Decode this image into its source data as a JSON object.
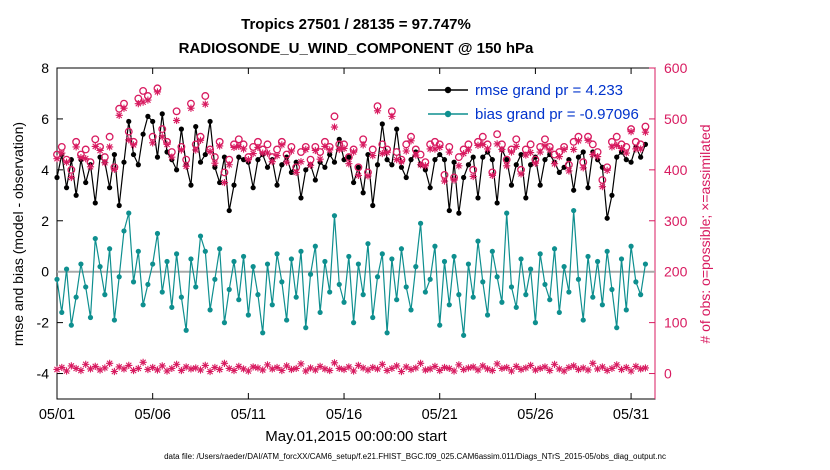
{
  "figure": {
    "title_line1": "Tropics 27501 / 28135 = 97.747%",
    "title_line2": "RADIOSONDE_U_WIND_COMPONENT @ 150 hPa",
    "xlabel": "May.01,2015 00:00:00 start",
    "ylabel_left": "rmse and bias (model - observation)",
    "ylabel_right": "# of obs: o=possible; ×=assimilated",
    "caption": "data file: /Users/raeder/DAI/ATM_forcXX/CAM6_setup/f.e21.FHIST_BGC.f09_025.CAM6assim.011/Diags_NTrS_2015-05/obs_diag_output.nc"
  },
  "legend": {
    "rmse_label": "rmse grand pr = 4.233",
    "bias_label": "bias grand pr = -0.97096",
    "text_color": "#0033CC"
  },
  "colors": {
    "rmse": "#000000",
    "bias": "#0E8F8F",
    "obs_count": "#D81B60",
    "zero_line": "#A9A9A9",
    "axis": "#000000"
  },
  "chart_data": {
    "type": "line",
    "title": "Tropics 27501 / 28135 = 97.747% — RADIOSONDE_U_WIND_COMPONENT @ 150 hPa",
    "xlabel": "May.01,2015 00:00:00 start",
    "ylabel_left": "rmse and bias (model - observation)",
    "ylabel_right": "# of obs: o=possible; ×=assimilated",
    "x_tick_labels": [
      "05/01",
      "05/06",
      "05/11",
      "05/16",
      "05/21",
      "05/26",
      "05/31"
    ],
    "x_tick_days": [
      0,
      5,
      10,
      15,
      20,
      25,
      30
    ],
    "x_max_days": 31.25,
    "points_per_day": 4,
    "left_ylim": [
      -5,
      8
    ],
    "left_yticks": [
      -4,
      -2,
      0,
      2,
      4,
      6,
      8
    ],
    "right_ylim": [
      -50,
      600
    ],
    "right_yticks": [
      0,
      100,
      200,
      300,
      400,
      500,
      600
    ],
    "grid": false,
    "legend_position": "top-right-inside",
    "series": [
      {
        "name": "rmse",
        "axis": "left",
        "color": "#000000",
        "marker": "filled-circle",
        "grand_value": 4.233,
        "values": [
          3.7,
          4.6,
          3.3,
          4.4,
          3.0,
          4.4,
          3.5,
          4.2,
          2.7,
          4.5,
          4.3,
          3.3,
          4.6,
          2.6,
          4.3,
          5.9,
          4.6,
          4.2,
          5.4,
          6.1,
          5.9,
          4.5,
          6.2,
          4.7,
          4.4,
          4.0,
          5.6,
          4.2,
          3.4,
          5.7,
          4.3,
          4.6,
          5.9,
          4.1,
          3.5,
          4.5,
          2.4,
          3.4,
          4.5,
          4.4,
          4.3,
          3.3,
          4.4,
          4.6,
          4.1,
          4.4,
          3.4,
          4.2,
          4.5,
          3.9,
          4.3,
          2.9,
          4.0,
          4.2,
          3.6,
          4.3,
          4.1,
          4.6,
          4.3,
          5.2,
          4.4,
          4.5,
          3.5,
          4.1,
          3.1,
          4.6,
          2.6,
          4.2,
          5.8,
          4.4,
          4.2,
          5.6,
          4.1,
          3.7,
          4.4,
          4.7,
          4.2,
          4.0,
          3.3,
          4.4,
          4.6,
          4.4,
          2.4,
          4.3,
          2.3,
          3.7,
          4.2,
          4.5,
          2.9,
          4.5,
          4.7,
          4.4,
          2.7,
          4.8,
          4.4,
          3.4,
          4.2,
          4.6,
          2.9,
          4.2,
          4.5,
          3.4,
          4.4,
          4.6,
          4.3,
          3.9,
          4.1,
          4.4,
          3.2,
          4.5,
          4.7,
          3.3,
          4.7,
          4.4,
          4.1,
          2.1,
          3.0,
          4.5,
          4.7,
          4.4,
          4.3,
          4.9,
          4.5,
          5.0
        ]
      },
      {
        "name": "bias",
        "axis": "left",
        "color": "#0E8F8F",
        "marker": "filled-circle",
        "grand_value": -0.97096,
        "values": [
          -0.3,
          -1.6,
          0.1,
          -2.1,
          -1.0,
          0.3,
          -0.6,
          -1.8,
          1.3,
          0.2,
          -0.9,
          0.9,
          -1.9,
          -0.2,
          1.6,
          2.3,
          -0.4,
          0.8,
          -1.3,
          -0.5,
          0.3,
          1.5,
          -0.8,
          0.4,
          -1.4,
          0.7,
          -1.0,
          -2.3,
          0.5,
          -0.6,
          1.4,
          0.8,
          -1.5,
          -0.3,
          0.9,
          -2.0,
          -0.7,
          0.4,
          -1.1,
          0.6,
          -1.7,
          0.2,
          -0.9,
          -2.4,
          0.3,
          -1.3,
          0.7,
          -0.4,
          -1.9,
          0.5,
          -1.0,
          0.8,
          -2.2,
          -0.1,
          1.0,
          -1.6,
          0.4,
          -0.8,
          2.2,
          -0.5,
          -1.2,
          0.6,
          -2.0,
          0.3,
          -0.9,
          1.1,
          -1.8,
          -0.2,
          0.7,
          -2.4,
          0.5,
          -1.1,
          0.9,
          -0.6,
          -1.5,
          0.2,
          1.9,
          -0.8,
          -0.3,
          1.0,
          -2.1,
          0.4,
          -1.3,
          0.6,
          -0.9,
          -2.5,
          0.3,
          -1.0,
          1.2,
          -0.4,
          -1.7,
          0.8,
          -0.2,
          -1.2,
          2.3,
          -0.6,
          -1.4,
          0.5,
          -0.9,
          0.1,
          -2.0,
          0.7,
          -0.5,
          -1.1,
          0.9,
          -1.6,
          0.2,
          -0.8,
          2.4,
          -0.3,
          -1.9,
          0.6,
          -1.0,
          0.4,
          -1.3,
          0.8,
          -0.7,
          -2.2,
          0.5,
          -1.5,
          1.0,
          -0.4,
          -0.9,
          0.3
        ]
      },
      {
        "name": "obs_possible",
        "axis": "right",
        "color": "#D81B60",
        "marker": "open-circle",
        "total": 28135,
        "values": [
          430,
          445,
          420,
          400,
          455,
          430,
          440,
          415,
          460,
          445,
          425,
          465,
          405,
          520,
          530,
          475,
          455,
          540,
          555,
          545,
          465,
          560,
          480,
          455,
          435,
          515,
          445,
          420,
          530,
          450,
          465,
          545,
          440,
          425,
          455,
          395,
          420,
          450,
          460,
          450,
          425,
          445,
          455,
          440,
          450,
          425,
          440,
          455,
          430,
          445,
          405,
          435,
          445,
          420,
          445,
          435,
          455,
          445,
          505,
          450,
          450,
          425,
          440,
          405,
          460,
          395,
          440,
          525,
          450,
          440,
          515,
          435,
          420,
          450,
          465,
          440,
          430,
          415,
          450,
          455,
          450,
          390,
          445,
          385,
          425,
          440,
          450,
          400,
          455,
          465,
          450,
          395,
          470,
          450,
          420,
          440,
          460,
          400,
          440,
          450,
          420,
          445,
          460,
          445,
          430,
          435,
          445,
          410,
          455,
          465,
          415,
          465,
          450,
          435,
          380,
          405,
          455,
          465,
          450,
          445,
          480,
          455,
          450,
          485
        ]
      },
      {
        "name": "obs_not_assimilated",
        "axis": "right",
        "color": "#D81B60",
        "marker": "asterisk",
        "note_assimilated_total": 27501,
        "values": [
          8,
          12,
          5,
          15,
          10,
          6,
          18,
          9,
          14,
          7,
          11,
          20,
          4,
          13,
          9,
          16,
          6,
          10,
          22,
          8,
          12,
          7,
          15,
          5,
          10,
          18,
          6,
          13,
          9,
          11,
          7,
          16,
          4,
          12,
          8,
          20,
          10,
          6,
          14,
          9,
          5,
          13,
          11,
          7,
          17,
          9,
          12,
          6,
          15,
          8,
          10,
          19,
          5,
          11,
          7,
          14,
          9,
          6,
          21,
          10,
          8,
          13,
          5,
          16,
          11,
          7,
          12,
          9,
          18,
          6,
          10,
          15,
          4,
          13,
          8,
          11,
          20,
          7,
          9,
          14,
          6,
          12,
          10,
          5,
          17,
          8,
          11,
          13,
          7,
          15,
          9,
          6,
          19,
          10,
          12,
          5,
          14,
          8,
          11,
          16,
          7,
          10,
          13,
          6,
          18,
          9,
          5,
          12,
          15,
          8,
          11,
          7,
          20,
          9,
          13,
          6,
          10,
          17,
          8,
          12,
          5,
          14,
          9,
          11
        ]
      }
    ]
  }
}
